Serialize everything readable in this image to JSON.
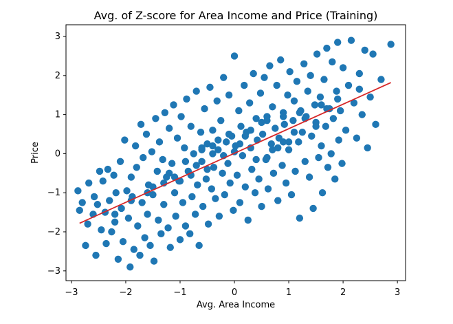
{
  "chart_data": {
    "type": "scatter",
    "title": "Avg. of Z-score for Area Income and Price (Training)",
    "xlabel": "Avg. Area Income",
    "ylabel": "Price",
    "xlim": [
      -3.1,
      3.15
    ],
    "ylim": [
      -3.25,
      3.3
    ],
    "xticks": [
      -3,
      -2,
      -1,
      0,
      1,
      2,
      3
    ],
    "yticks": [
      -3,
      -2,
      -1,
      0,
      1,
      2,
      3
    ],
    "xtick_labels": [
      "−3",
      "−2",
      "−1",
      "0",
      "1",
      "2",
      "3"
    ],
    "ytick_labels": [
      "−3",
      "−2",
      "−1",
      "0",
      "1",
      "2",
      "3"
    ],
    "grid": false,
    "legend": "none",
    "colors": {
      "points": "#1f77b4",
      "regression_line": "#d62728",
      "axes": "#000000",
      "background": "#ffffff"
    },
    "series": [
      {
        "type": "scatter",
        "x": [
          -2.88,
          -2.85,
          -2.8,
          -2.74,
          -2.7,
          -2.68,
          -2.6,
          -2.58,
          -2.55,
          -2.52,
          -2.48,
          -2.45,
          -2.42,
          -2.38,
          -2.36,
          -2.33,
          -2.3,
          -2.26,
          -2.22,
          -2.2,
          -2.18,
          -2.14,
          -2.1,
          -2.08,
          -2.05,
          -2.02,
          -1.98,
          -1.95,
          -1.92,
          -1.9,
          -1.88,
          -1.85,
          -1.82,
          -1.8,
          -1.78,
          -1.74,
          -1.72,
          -1.7,
          -1.68,
          -1.65,
          -1.62,
          -1.6,
          -1.58,
          -1.55,
          -1.52,
          -1.5,
          -1.48,
          -1.45,
          -1.42,
          -1.4,
          -1.38,
          -1.35,
          -1.32,
          -1.3,
          -1.28,
          -1.25,
          -1.22,
          -1.2,
          -1.18,
          -1.15,
          -1.12,
          -1.1,
          -1.08,
          -1.05,
          -1.02,
          -1.0,
          -0.98,
          -0.95,
          -0.92,
          -0.9,
          -0.88,
          -0.85,
          -0.82,
          -0.8,
          -0.78,
          -0.75,
          -0.72,
          -0.7,
          -0.68,
          -0.65,
          -0.62,
          -0.6,
          -0.58,
          -0.55,
          -0.52,
          -0.5,
          -0.48,
          -0.45,
          -0.42,
          -0.4,
          -0.38,
          -0.35,
          -0.32,
          -0.3,
          -0.28,
          -0.25,
          -0.22,
          -0.2,
          -0.18,
          -0.15,
          -0.12,
          -0.1,
          -0.08,
          -0.05,
          -0.02,
          0.0,
          0.02,
          0.05,
          0.08,
          0.1,
          0.12,
          0.15,
          0.18,
          0.2,
          0.22,
          0.25,
          0.28,
          0.3,
          0.32,
          0.35,
          0.38,
          0.4,
          0.42,
          0.45,
          0.48,
          0.5,
          0.52,
          0.55,
          0.58,
          0.6,
          0.62,
          0.65,
          0.68,
          0.7,
          0.72,
          0.75,
          0.78,
          0.8,
          0.82,
          0.85,
          0.88,
          0.9,
          0.92,
          0.95,
          0.98,
          1.0,
          1.02,
          1.05,
          1.08,
          1.1,
          1.12,
          1.15,
          1.18,
          1.2,
          1.22,
          1.25,
          1.28,
          1.3,
          1.32,
          1.35,
          1.38,
          1.4,
          1.42,
          1.45,
          1.48,
          1.5,
          1.52,
          1.55,
          1.58,
          1.6,
          1.62,
          1.65,
          1.68,
          1.7,
          1.72,
          1.75,
          1.78,
          1.8,
          1.82,
          1.85,
          1.88,
          1.9,
          1.92,
          1.95,
          1.98,
          2.0,
          2.05,
          2.1,
          2.15,
          2.2,
          2.25,
          2.3,
          2.35,
          2.4,
          2.45,
          2.5,
          2.55,
          2.6,
          2.7,
          2.88,
          -1.2,
          -0.9,
          -0.6,
          -0.3,
          0.0,
          0.3,
          0.6,
          0.9,
          1.2,
          1.5,
          -1.5,
          -1.1,
          -0.7,
          -0.2,
          0.2,
          0.7,
          1.1,
          1.6,
          -0.4,
          0.4,
          -1.9,
          -1.3,
          -0.5,
          0.1,
          0.6,
          1.3,
          1.9,
          -0.1,
          0.8,
          -0.8,
          -2.2,
          -1.6,
          -1.0,
          -0.4,
          0.5,
          1.0,
          1.7,
          2.3,
          0.9,
          -0.6
        ],
        "y": [
          -0.95,
          -1.45,
          -1.25,
          -2.35,
          -1.8,
          -0.75,
          -1.55,
          -1.1,
          -2.6,
          -1.3,
          -0.45,
          -1.95,
          -0.7,
          -1.5,
          -2.3,
          -0.4,
          -1.2,
          -2.0,
          -0.55,
          -1.75,
          -1.0,
          -2.7,
          -0.2,
          -1.4,
          -2.25,
          0.35,
          -0.95,
          -1.65,
          -2.9,
          -0.6,
          -1.1,
          -2.45,
          0.2,
          -0.35,
          -1.85,
          -2.6,
          0.75,
          -1.25,
          -0.1,
          -2.15,
          0.5,
          -1.55,
          -0.8,
          -2.35,
          0.05,
          -1.05,
          -2.75,
          0.9,
          -0.45,
          -1.7,
          0.3,
          -2.05,
          -0.15,
          -1.3,
          1.05,
          -0.6,
          -1.9,
          0.65,
          -2.4,
          -0.25,
          1.25,
          -1.0,
          -1.6,
          0.4,
          -0.7,
          -2.2,
          0.95,
          -1.25,
          0.15,
          -1.85,
          1.4,
          -0.45,
          -2.05,
          0.7,
          -1.1,
          0.0,
          -1.55,
          1.6,
          -0.8,
          -2.35,
          0.55,
          -0.2,
          -1.35,
          1.15,
          -0.65,
          0.25,
          -1.8,
          1.7,
          -0.9,
          0.6,
          -0.35,
          -1.15,
          1.35,
          0.1,
          -1.6,
          0.85,
          -0.5,
          1.95,
          -1.05,
          0.3,
          -0.25,
          1.5,
          -0.75,
          0.45,
          -1.45,
          2.5,
          0.2,
          -0.55,
          1.1,
          -1.25,
          0.7,
          -0.05,
          1.75,
          -0.85,
          0.55,
          -1.7,
          1.3,
          0.15,
          -0.4,
          2.05,
          -1.0,
          0.9,
          0.35,
          -0.65,
          1.55,
          -1.35,
          0.5,
          1.95,
          -0.15,
          0.95,
          -0.9,
          2.25,
          0.25,
          1.2,
          -0.5,
          0.65,
          1.75,
          -1.2,
          0.4,
          2.4,
          -0.3,
          1.05,
          0.75,
          -0.75,
          1.5,
          0.1,
          2.1,
          -1.05,
          0.85,
          1.35,
          -0.45,
          1.85,
          0.3,
          -1.65,
          1.1,
          0.55,
          2.3,
          -0.2,
          0.95,
          1.6,
          -0.6,
          2.0,
          0.45,
          -1.4,
          1.25,
          0.8,
          2.55,
          -0.1,
          1.45,
          0.2,
          -1.0,
          1.9,
          0.7,
          2.7,
          -0.35,
          1.15,
          0.0,
          2.35,
          0.9,
          -0.65,
          1.6,
          2.85,
          0.35,
          1.1,
          -0.25,
          2.2,
          0.6,
          1.75,
          2.9,
          1.3,
          0.4,
          2.05,
          1.0,
          2.65,
          0.15,
          1.45,
          2.55,
          0.75,
          1.9,
          2.8,
          -0.5,
          -0.2,
          0.15,
          0.35,
          0.05,
          0.6,
          0.85,
          0.3,
          1.05,
          0.7,
          -0.85,
          -0.6,
          -0.3,
          -0.05,
          0.45,
          0.1,
          0.55,
          1.25,
          0.2,
          -0.15,
          -1.2,
          -0.75,
          -0.4,
          0.25,
          -0.1,
          0.9,
          1.4,
          0.5,
          0.15,
          -0.55,
          -1.55,
          -1.0,
          -0.7,
          0.0,
          0.8,
          0.3,
          1.15,
          1.65,
          0.95,
          0.1
        ]
      },
      {
        "type": "line",
        "x": [
          -2.85,
          2.88
        ],
        "y": [
          -1.78,
          1.82
        ]
      }
    ]
  }
}
